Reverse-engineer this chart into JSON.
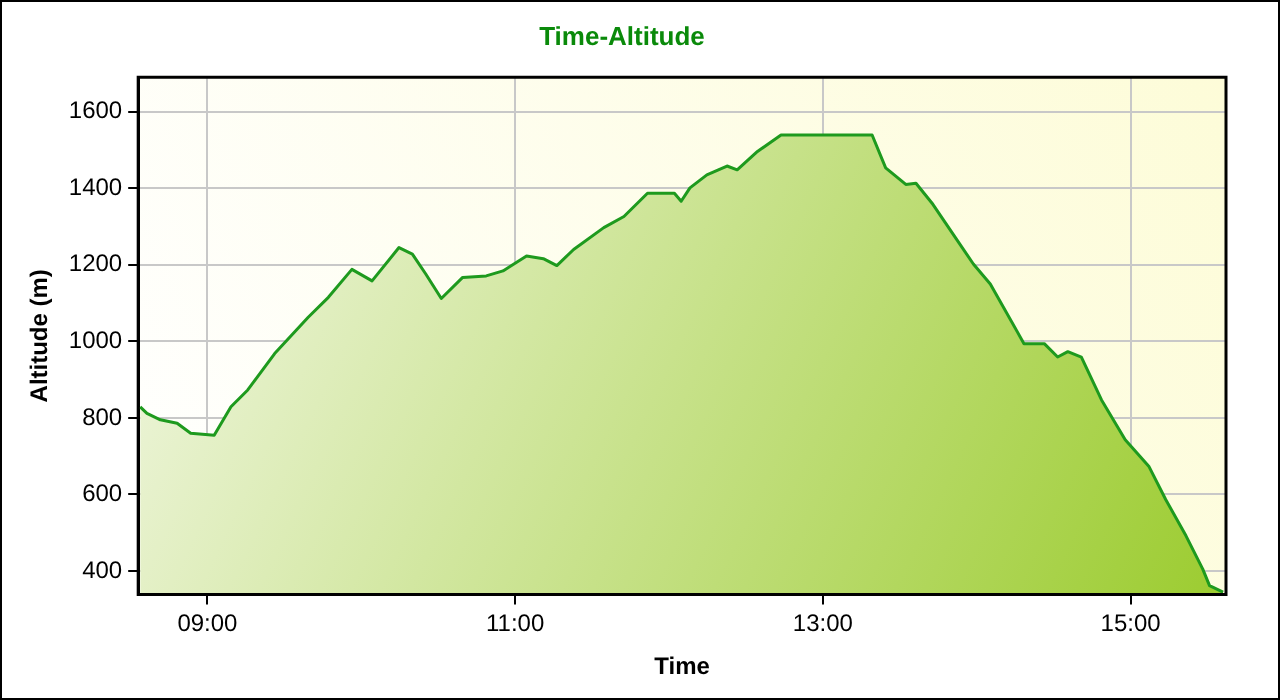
{
  "chart_data": {
    "type": "area",
    "title": "Time-Altitude",
    "xlabel": "Time",
    "ylabel": "Altitude (m)",
    "xlim": [
      8.55,
      15.62
    ],
    "xticks": [
      {
        "value": 9,
        "label": "09:00"
      },
      {
        "value": 11,
        "label": "11:00"
      },
      {
        "value": 13,
        "label": "13:00"
      },
      {
        "value": 15,
        "label": "15:00"
      }
    ],
    "ylim": [
      339,
      1690
    ],
    "yticks": [
      400,
      600,
      800,
      1000,
      1200,
      1400,
      1600
    ],
    "grid": true,
    "marker": "none",
    "line_style": "solid",
    "legend": false,
    "series": [
      {
        "color": "#1e9a1e",
        "x": [
          8.563,
          8.607,
          8.694,
          8.803,
          8.891,
          9.044,
          9.153,
          9.262,
          9.437,
          9.655,
          9.786,
          9.939,
          10.07,
          10.245,
          10.332,
          10.419,
          10.52,
          10.659,
          10.812,
          10.921,
          11.074,
          11.183,
          11.271,
          11.38,
          11.576,
          11.707,
          11.86,
          12.035,
          12.079,
          12.136,
          12.246,
          12.377,
          12.443,
          12.575,
          12.728,
          13.32,
          13.408,
          13.539,
          13.605,
          13.715,
          13.846,
          13.978,
          14.088,
          14.307,
          14.439,
          14.526,
          14.592,
          14.68,
          14.811,
          14.965,
          15.118,
          15.228,
          15.36,
          15.469,
          15.513,
          15.601
        ],
        "values": [
          829,
          812,
          795,
          786,
          760,
          755,
          829,
          873,
          968,
          1063,
          1115,
          1188,
          1158,
          1245,
          1228,
          1176,
          1112,
          1167,
          1171,
          1184,
          1223,
          1216,
          1198,
          1240,
          1297,
          1326,
          1387,
          1387,
          1366,
          1401,
          1435,
          1458,
          1448,
          1496,
          1539,
          1539,
          1453,
          1410,
          1413,
          1358,
          1280,
          1202,
          1150,
          994,
          994,
          959,
          973,
          959,
          847,
          743,
          674,
          587,
          492,
          405,
          362,
          345
        ]
      }
    ]
  }
}
